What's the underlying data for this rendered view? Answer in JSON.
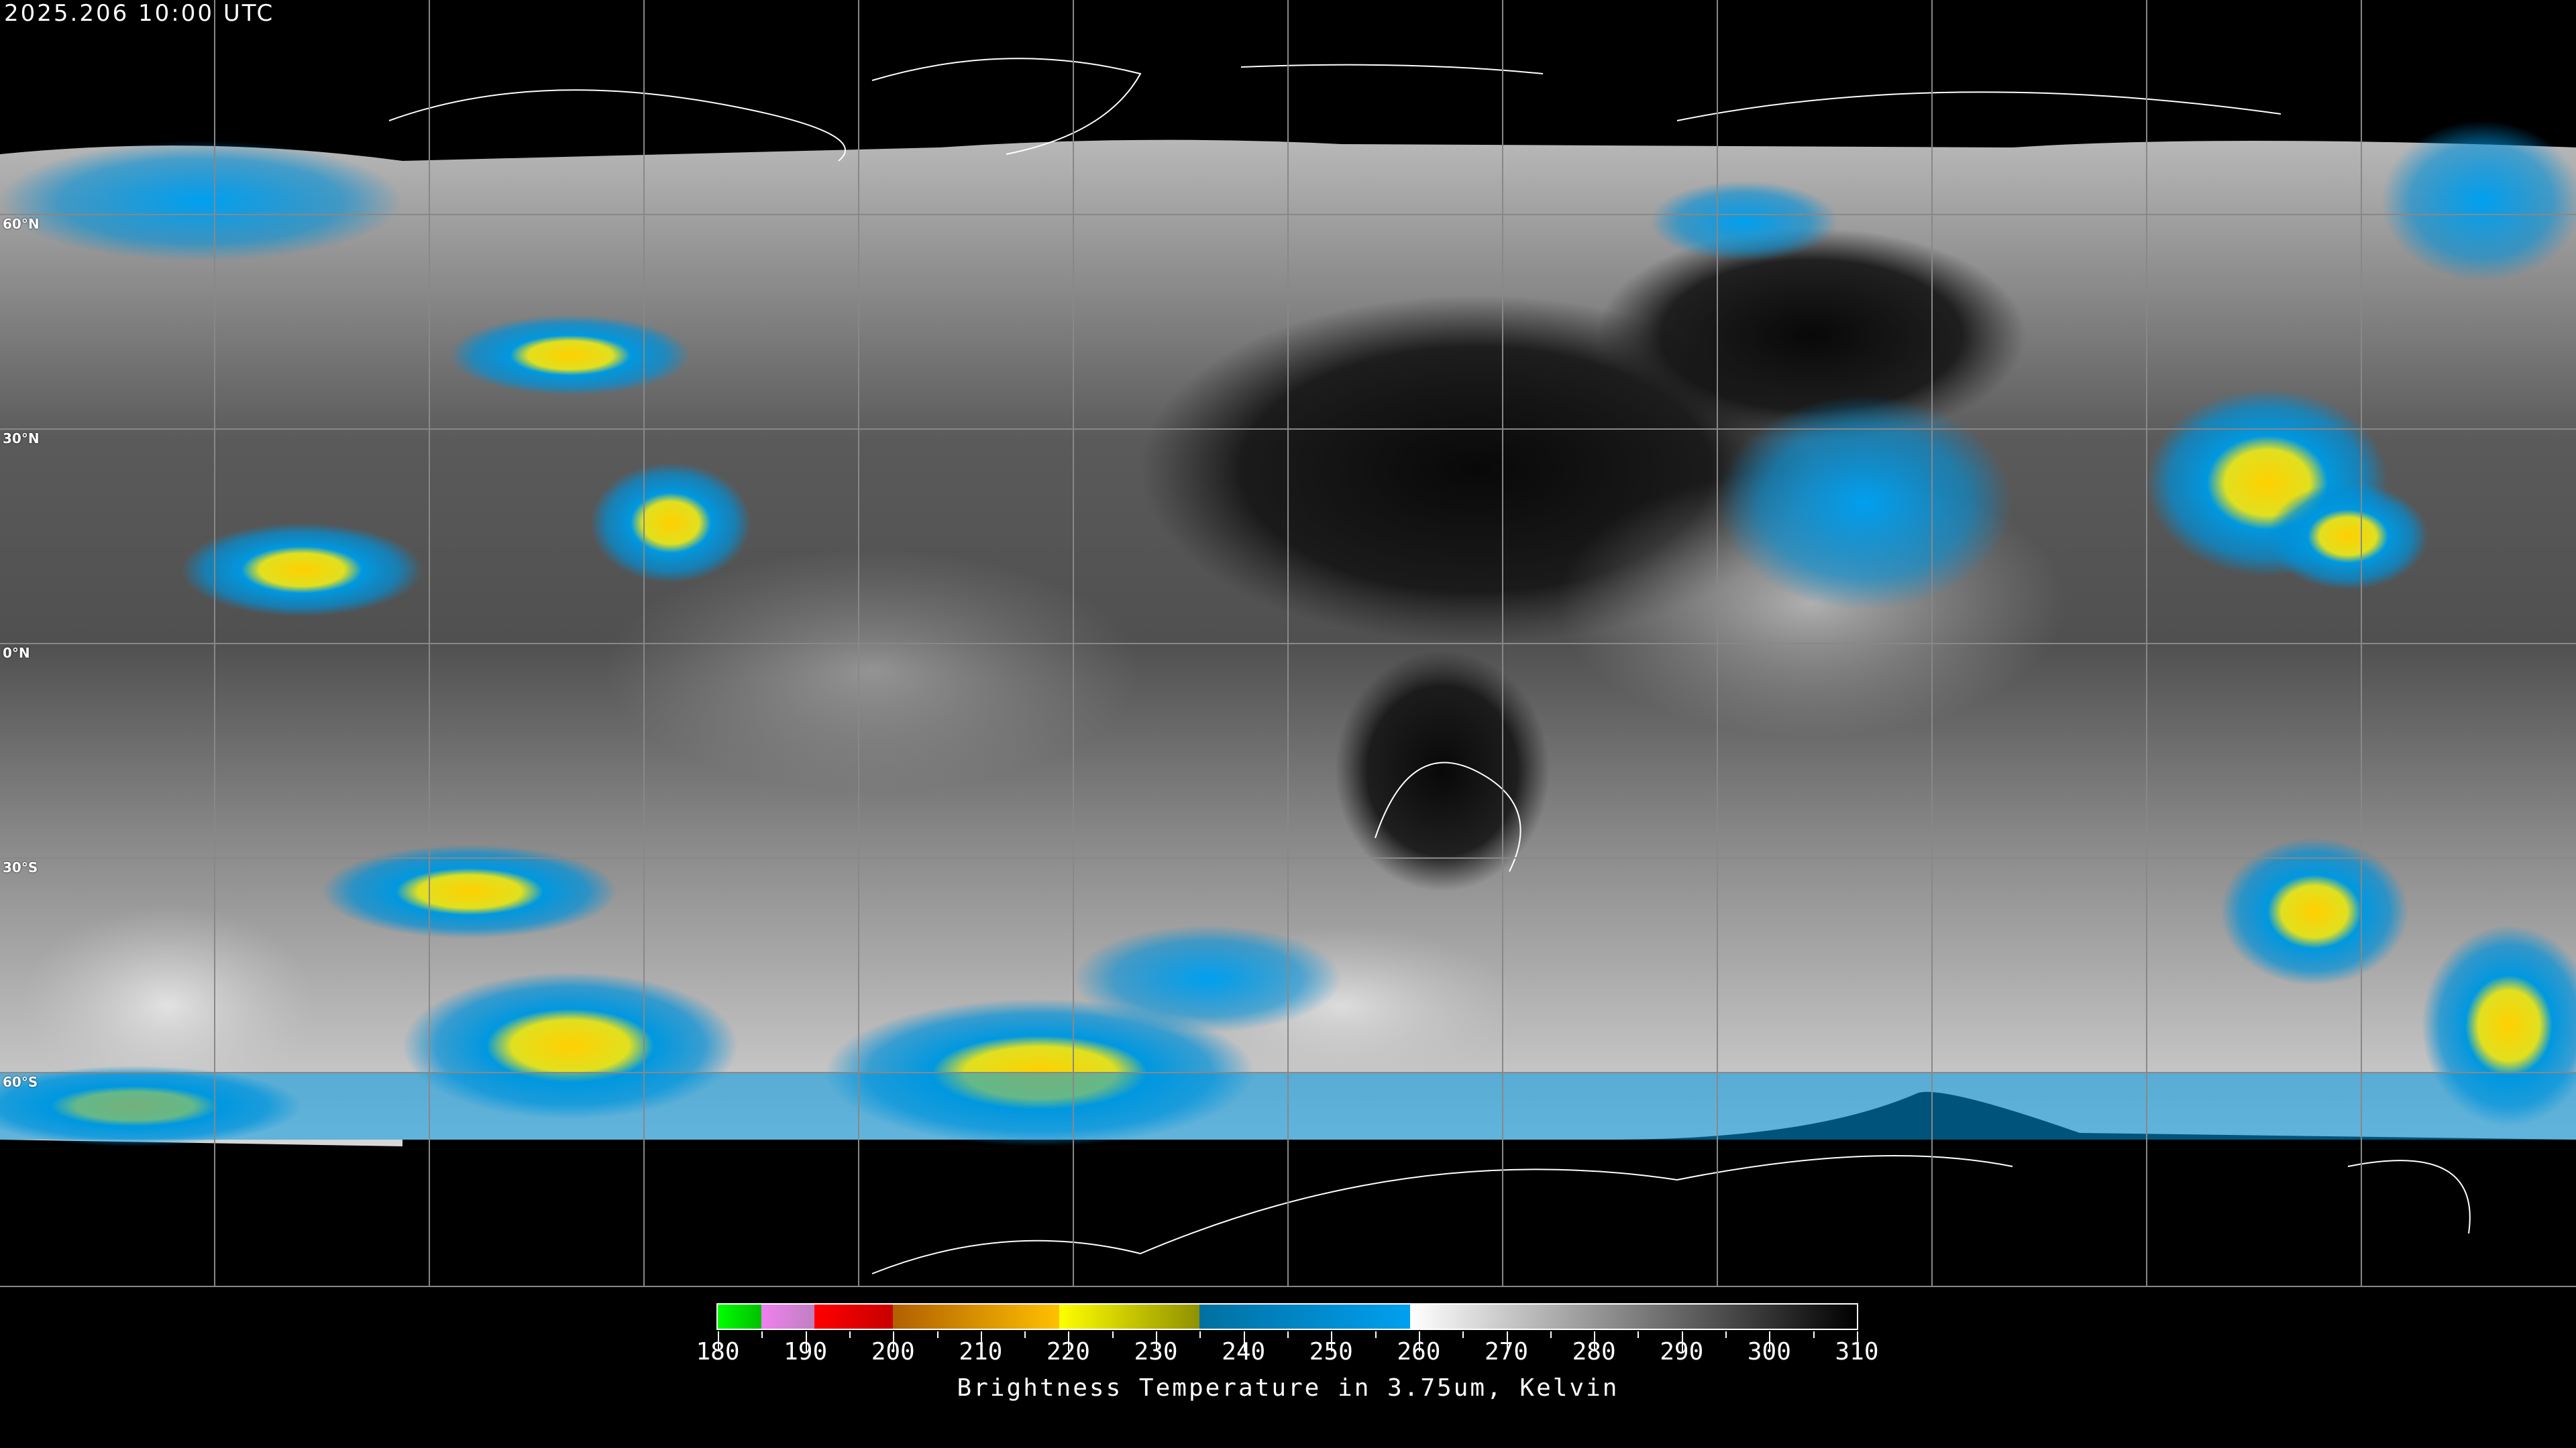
{
  "header": {
    "timestamp": "2025.206 10:00 UTC"
  },
  "map": {
    "projection": "equirectangular",
    "lat_labels": [
      "60°N",
      "30°N",
      "0°N",
      "30°S",
      "60°S"
    ],
    "gridline_color": "#888888",
    "coastline_color": "#ffffff"
  },
  "colorbar": {
    "title": "Brightness Temperature in 3.75um, Kelvin",
    "range": [
      180,
      310
    ],
    "tick_labels": [
      "180",
      "190",
      "200",
      "210",
      "220",
      "230",
      "240",
      "250",
      "260",
      "270",
      "280",
      "290",
      "300",
      "310"
    ],
    "segments": [
      {
        "from": 180,
        "to": 185,
        "start": "#00ff00",
        "end": "#00c000"
      },
      {
        "from": 185,
        "to": 191,
        "start": "#f080f0",
        "end": "#c080c0"
      },
      {
        "from": 191,
        "to": 200,
        "start": "#ff0000",
        "end": "#c80000"
      },
      {
        "from": 200,
        "to": 219,
        "start": "#b06000",
        "end": "#ffc000"
      },
      {
        "from": 219,
        "to": 235,
        "start": "#ffff00",
        "end": "#909000"
      },
      {
        "from": 235,
        "to": 259,
        "start": "#0070a0",
        "end": "#00a0f0"
      },
      {
        "from": 259,
        "to": 310,
        "start": "#ffffff",
        "end": "#000000"
      }
    ]
  }
}
